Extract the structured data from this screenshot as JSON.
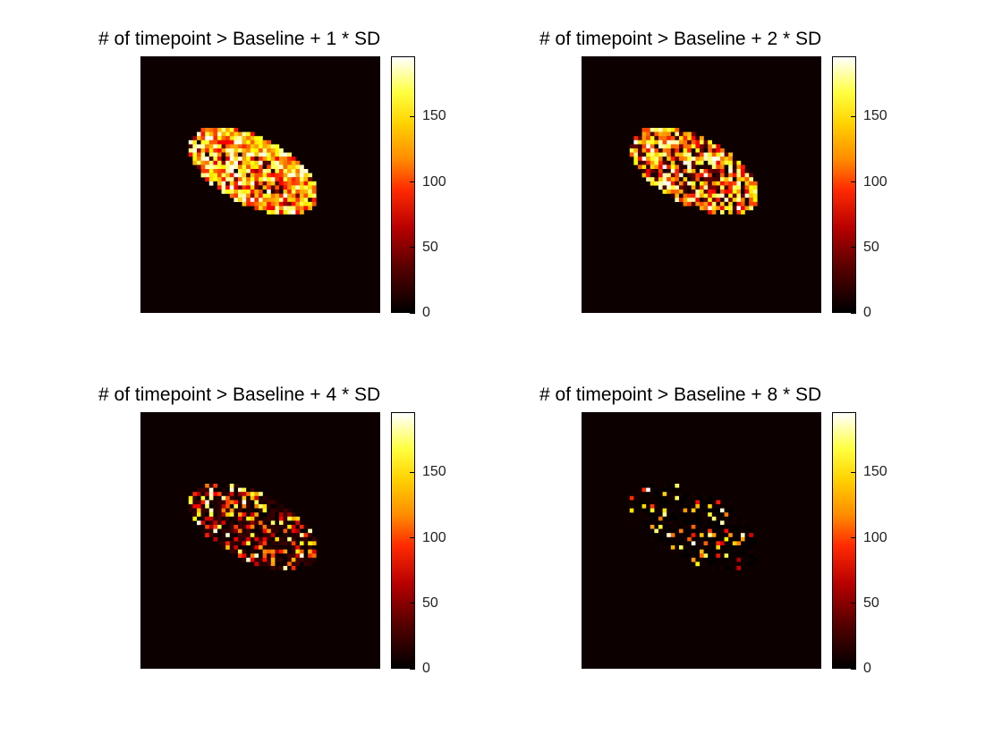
{
  "chart_data": [
    {
      "type": "heatmap",
      "title": "# of timepoint > Baseline + 1 * SD",
      "colormap": "hot",
      "clim": [
        0,
        196
      ],
      "colorbar_ticks": [
        0,
        50,
        100,
        150
      ],
      "density": 0.95
    },
    {
      "type": "heatmap",
      "title": "# of timepoint > Baseline + 2 * SD",
      "colormap": "hot",
      "clim": [
        0,
        196
      ],
      "colorbar_ticks": [
        0,
        50,
        100,
        150
      ],
      "density": 0.75
    },
    {
      "type": "heatmap",
      "title": "# of timepoint > Baseline + 4 * SD",
      "colormap": "hot",
      "clim": [
        0,
        196
      ],
      "colorbar_ticks": [
        0,
        50,
        100,
        150
      ],
      "density": 0.38
    },
    {
      "type": "heatmap",
      "title": "# of timepoint > Baseline + 8 * SD",
      "colormap": "hot",
      "clim": [
        0,
        196
      ],
      "colorbar_ticks": [
        0,
        50,
        100,
        150
      ],
      "density": 0.12
    }
  ]
}
